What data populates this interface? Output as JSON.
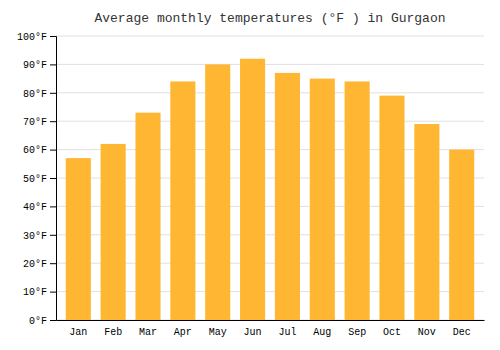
{
  "chart_data": {
    "type": "bar",
    "title": "Average monthly temperatures (°F ) in Gurgaon",
    "categories": [
      "Jan",
      "Feb",
      "Mar",
      "Apr",
      "May",
      "Jun",
      "Jul",
      "Aug",
      "Sep",
      "Oct",
      "Nov",
      "Dec"
    ],
    "values": [
      57,
      62,
      73,
      84,
      90,
      92,
      87,
      85,
      84,
      79,
      69,
      60
    ],
    "color": "#FFB733",
    "ylim": [
      0,
      100
    ],
    "yticks": [
      {
        "value": 0,
        "label": "0°F"
      },
      {
        "value": 10,
        "label": "10°F"
      },
      {
        "value": 20,
        "label": "20°F"
      },
      {
        "value": 30,
        "label": "30°F"
      },
      {
        "value": 40,
        "label": "40°F"
      },
      {
        "value": 50,
        "label": "50°F"
      },
      {
        "value": 60,
        "label": "60°F"
      },
      {
        "value": 70,
        "label": "70°F"
      },
      {
        "value": 80,
        "label": "80°F"
      },
      {
        "value": 90,
        "label": "90°F"
      },
      {
        "value": 100,
        "label": "100°F"
      }
    ],
    "grid": true
  }
}
